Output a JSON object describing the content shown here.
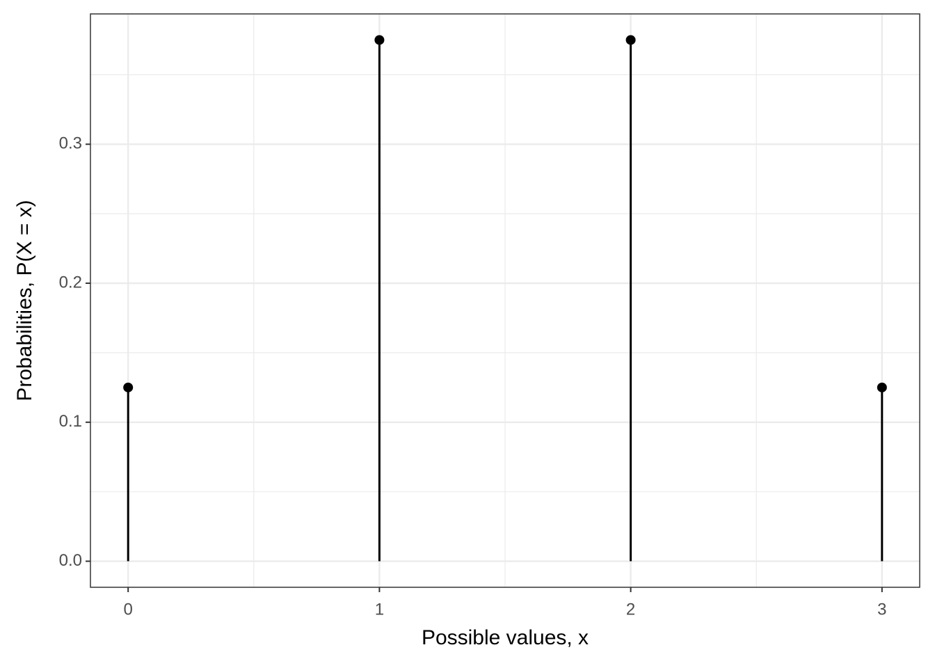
{
  "chart_data": {
    "type": "lollipop",
    "x": [
      0,
      1,
      2,
      3
    ],
    "values": [
      0.125,
      0.375,
      0.375,
      0.125
    ],
    "color": "#000000",
    "xlabel": "Possible values, x",
    "ylabel": "Probabilities, P(X = x)",
    "xlim": [
      -0.15,
      3.15
    ],
    "ylim": [
      -0.01875,
      0.39375
    ],
    "xticks": [
      0,
      1,
      2,
      3
    ],
    "yticks": [
      {
        "value": 0,
        "label": "0.0"
      },
      0.1,
      0.2,
      0.3
    ],
    "grid": true
  }
}
